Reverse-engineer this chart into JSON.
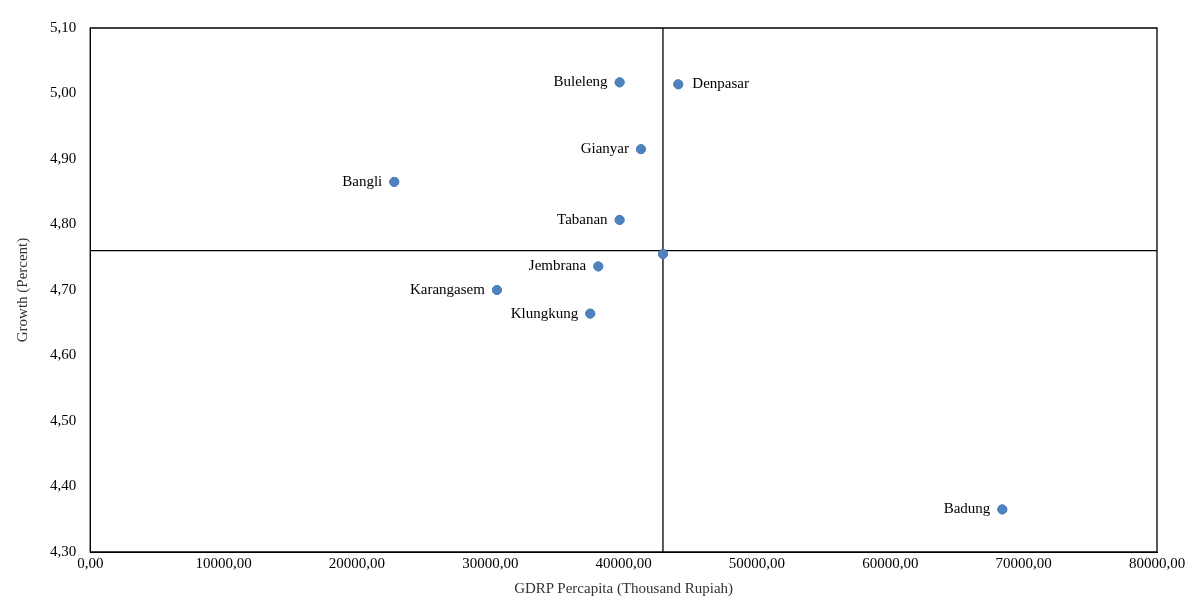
{
  "chart_data": {
    "type": "scatter",
    "xlabel": "GDRP Percapita (Thousand Rupiah)",
    "ylabel": "Growth (Percent)",
    "xlim": [
      0,
      80000
    ],
    "ylim": [
      4.3,
      5.1
    ],
    "xticks": [
      {
        "value": 0,
        "label": "0,00"
      },
      {
        "value": 10000,
        "label": "10000,00"
      },
      {
        "value": 20000,
        "label": "20000,00"
      },
      {
        "value": 30000,
        "label": "30000,00"
      },
      {
        "value": 40000,
        "label": "40000,00"
      },
      {
        "value": 50000,
        "label": "50000,00"
      },
      {
        "value": 60000,
        "label": "60000,00"
      },
      {
        "value": 70000,
        "label": "70000,00"
      },
      {
        "value": 80000,
        "label": "80000,00"
      }
    ],
    "yticks": [
      {
        "value": 4.3,
        "label": "4,30"
      },
      {
        "value": 4.4,
        "label": "4,40"
      },
      {
        "value": 4.5,
        "label": "4,50"
      },
      {
        "value": 4.6,
        "label": "4,60"
      },
      {
        "value": 4.7,
        "label": "4,70"
      },
      {
        "value": 4.8,
        "label": "4,80"
      },
      {
        "value": 4.9,
        "label": "4,90"
      },
      {
        "value": 5.0,
        "label": "5,00"
      },
      {
        "value": 5.1,
        "label": "5,10"
      }
    ],
    "series": [
      {
        "color": "#4f81bd",
        "x": [
          39700,
          44100,
          41300,
          22800,
          39700,
          42950,
          38100,
          30500,
          37500,
          68400
        ],
        "values": [
          5.017,
          5.014,
          4.915,
          4.865,
          4.807,
          4.755,
          4.736,
          4.7,
          4.664,
          4.365
        ]
      }
    ],
    "annotations": [
      {
        "text": "Buleleng",
        "x": 39700,
        "y": 5.017
      },
      {
        "text": "Denpasar",
        "x": 44100,
        "y": 5.014
      },
      {
        "text": "Gianyar",
        "x": 41300,
        "y": 4.915
      },
      {
        "text": "Bangli",
        "x": 22800,
        "y": 4.865
      },
      {
        "text": "Tabanan",
        "x": 39700,
        "y": 4.807
      },
      {
        "text": "Jembrana",
        "x": 38100,
        "y": 4.736
      },
      {
        "text": "Karangasem",
        "x": 30500,
        "y": 4.7
      },
      {
        "text": "Klungkung",
        "x": 37500,
        "y": 4.664
      },
      {
        "text": "Badung",
        "x": 68400,
        "y": 4.365
      }
    ],
    "ref_lines": [
      {
        "axis": "x",
        "value": 42950,
        "color": "#000000"
      },
      {
        "axis": "y",
        "value": 4.76,
        "color": "#000000"
      }
    ],
    "marker": "circle",
    "grid": false,
    "legend": false
  }
}
